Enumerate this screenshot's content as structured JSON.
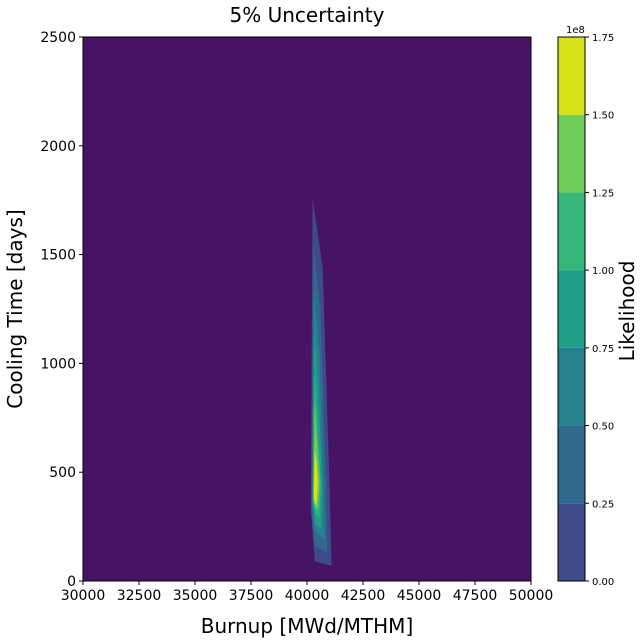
{
  "chart_data": {
    "type": "contour",
    "title": "5% Uncertainty",
    "xlabel": "Burnup [MWd/MTHM]",
    "ylabel": "Cooling Time [days]",
    "xlim": [
      30000,
      50000
    ],
    "ylim": [
      0,
      2500
    ],
    "xticks": [
      "30000",
      "32500",
      "35000",
      "37500",
      "40000",
      "42500",
      "45000",
      "47500",
      "50000"
    ],
    "yticks": [
      "0",
      "500",
      "1000",
      "1500",
      "2000",
      "2500"
    ],
    "colorbar": {
      "label": "Likelihood",
      "exponent_label": "1e8",
      "ticks": [
        "0.00",
        "0.25",
        "0.50",
        "0.75",
        "1.00",
        "1.25",
        "1.50",
        "1.75"
      ],
      "levels": [
        0,
        0.25,
        0.5,
        0.75,
        1.0,
        1.25,
        1.5,
        1.75
      ],
      "colors": [
        "#471365",
        "#3e4a89",
        "#31688e",
        "#26828e",
        "#1f9e89",
        "#35b779",
        "#6ece58",
        "#d8e219"
      ]
    },
    "contours": [
      {
        "level": "0.00-0.25",
        "color": "#3e4a89",
        "points": [
          [
            40250,
            1760
          ],
          [
            40700,
            1440
          ],
          [
            41000,
            460
          ],
          [
            41100,
            70
          ],
          [
            40350,
            90
          ],
          [
            40170,
            330
          ]
        ]
      },
      {
        "level": "0.25-0.50",
        "color": "#31688e",
        "points": [
          [
            40290,
            1550
          ],
          [
            40600,
            1250
          ],
          [
            40850,
            450
          ],
          [
            40900,
            130
          ],
          [
            40330,
            160
          ],
          [
            40200,
            340
          ]
        ]
      },
      {
        "level": "0.50-0.75",
        "color": "#26828e",
        "points": [
          [
            40310,
            1350
          ],
          [
            40550,
            1050
          ],
          [
            40750,
            430
          ],
          [
            40780,
            190
          ],
          [
            40350,
            230
          ],
          [
            40230,
            350
          ]
        ]
      },
      {
        "level": "0.75-1.00",
        "color": "#1f9e89",
        "points": [
          [
            40320,
            1150
          ],
          [
            40500,
            900
          ],
          [
            40680,
            430
          ],
          [
            40650,
            240
          ],
          [
            40380,
            260
          ],
          [
            40250,
            360
          ]
        ]
      },
      {
        "level": "1.00-1.25",
        "color": "#35b779",
        "points": [
          [
            40330,
            960
          ],
          [
            40440,
            770
          ],
          [
            40620,
            440
          ],
          [
            40550,
            290
          ],
          [
            40380,
            310
          ],
          [
            40270,
            370
          ]
        ]
      },
      {
        "level": "1.25-1.50",
        "color": "#6ece58",
        "points": [
          [
            40340,
            820
          ],
          [
            40420,
            680
          ],
          [
            40560,
            450
          ],
          [
            40480,
            330
          ],
          [
            40370,
            340
          ],
          [
            40290,
            380
          ]
        ]
      },
      {
        "level": "1.50-1.75",
        "color": "#d8e219",
        "points": [
          [
            40340,
            600
          ],
          [
            40420,
            560
          ],
          [
            40480,
            450
          ],
          [
            40430,
            360
          ],
          [
            40360,
            350
          ],
          [
            40310,
            390
          ]
        ]
      }
    ],
    "grid": false
  }
}
